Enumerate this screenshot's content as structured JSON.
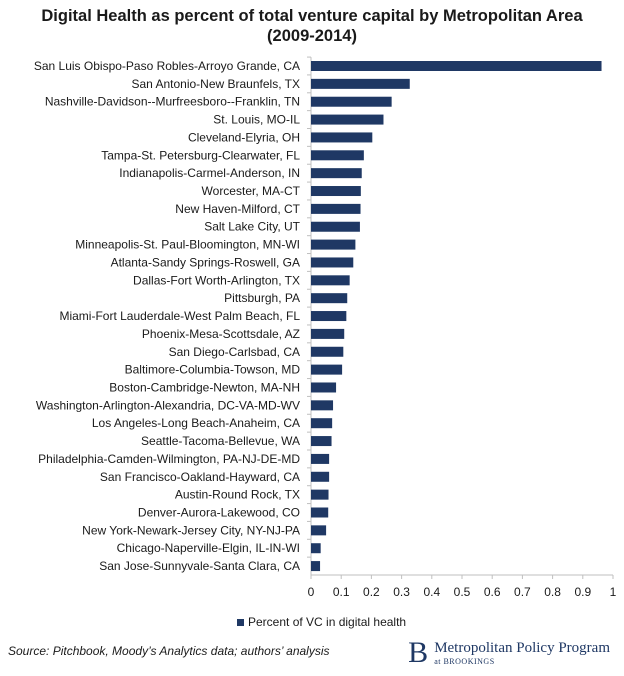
{
  "title_line1": "Digital Health as percent of total venture capital by Metropolitan Area",
  "title_line2": "(2009-2014)",
  "source": "Source: Pitchbook, Moody’s Analytics data; authors’ analysis",
  "brand": {
    "logo_letter": "B",
    "name": "Metropolitan Policy Program",
    "sub_prefix": "at",
    "sub_name": "BROOKINGS"
  },
  "colors": {
    "bar": "#1f3864",
    "axis": "#bfbfbf",
    "text": "#1a1a1a"
  },
  "chart_data": {
    "type": "bar",
    "orientation": "horizontal",
    "title": "Digital Health as percent of total venture capital by Metropolitan Area (2009-2014)",
    "categories": [
      "San Luis Obispo-Paso Robles-Arroyo Grande, CA",
      "San Antonio-New Braunfels, TX",
      "Nashville-Davidson--Murfreesboro--Franklin, TN",
      "St. Louis, MO-IL",
      "Cleveland-Elyria, OH",
      "Tampa-St. Petersburg-Clearwater, FL",
      "Indianapolis-Carmel-Anderson, IN",
      "Worcester, MA-CT",
      "New Haven-Milford, CT",
      "Salt Lake City, UT",
      "Minneapolis-St. Paul-Bloomington, MN-WI",
      "Atlanta-Sandy Springs-Roswell, GA",
      "Dallas-Fort Worth-Arlington, TX",
      "Pittsburgh, PA",
      "Miami-Fort Lauderdale-West Palm Beach, FL",
      "Phoenix-Mesa-Scottsdale, AZ",
      "San Diego-Carlsbad, CA",
      "Baltimore-Columbia-Towson, MD",
      "Boston-Cambridge-Newton, MA-NH",
      "Washington-Arlington-Alexandria, DC-VA-MD-WV",
      "Los Angeles-Long Beach-Anaheim, CA",
      "Seattle-Tacoma-Bellevue, WA",
      "Philadelphia-Camden-Wilmington, PA-NJ-DE-MD",
      "San Francisco-Oakland-Hayward, CA",
      "Austin-Round Rock, TX",
      "Denver-Aurora-Lakewood, CO",
      "New York-Newark-Jersey City, NY-NJ-PA",
      "Chicago-Naperville-Elgin, IL-IN-WI",
      "San Jose-Sunnyvale-Santa Clara, CA"
    ],
    "series": [
      {
        "name": "Percent of VC in digital health",
        "values": [
          0.962,
          0.327,
          0.267,
          0.24,
          0.203,
          0.175,
          0.168,
          0.165,
          0.164,
          0.162,
          0.147,
          0.14,
          0.128,
          0.12,
          0.117,
          0.11,
          0.107,
          0.103,
          0.083,
          0.073,
          0.07,
          0.068,
          0.06,
          0.06,
          0.058,
          0.057,
          0.05,
          0.032,
          0.03
        ]
      }
    ],
    "xlim": [
      0,
      1
    ],
    "xticks": [
      "0",
      "0.1",
      "0.2",
      "0.3",
      "0.4",
      "0.5",
      "0.6",
      "0.7",
      "0.8",
      "0.9",
      "1"
    ],
    "grid": false,
    "legend_position": "bottom"
  }
}
